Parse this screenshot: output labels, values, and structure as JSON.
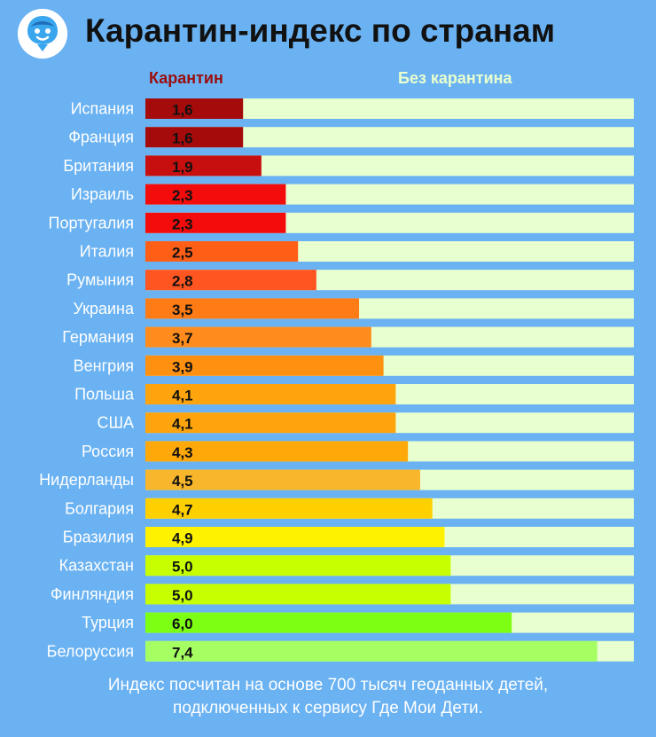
{
  "header": {
    "title": "Карантин-индекс по странам",
    "logo_icon": "child-face-pin-icon"
  },
  "legend": {
    "quarantine_label": "Карантин",
    "no_quarantine_label": "Без карантина"
  },
  "footnote": {
    "line1": "Индекс посчитан на основе 700 тысяч геоданных детей,",
    "line2": "подключенных к сервису Где Мои Дети."
  },
  "chart_data": {
    "type": "bar",
    "orientation": "horizontal",
    "stacked": true,
    "xlim": [
      0,
      8
    ],
    "grid": false,
    "categories": [
      "Испания",
      "Франция",
      "Британия",
      "Израиль",
      "Португалия",
      "Италия",
      "Румыния",
      "Украина",
      "Германия",
      "Венгрия",
      "Польша",
      "США",
      "Россия",
      "Нидерланды",
      "Болгария",
      "Бразилия",
      "Казахстан",
      "Финляндия",
      "Турция",
      "Белоруссия"
    ],
    "values": [
      1.6,
      1.6,
      1.9,
      2.3,
      2.3,
      2.5,
      2.8,
      3.5,
      3.7,
      3.9,
      4.1,
      4.1,
      4.3,
      4.5,
      4.7,
      4.9,
      5.0,
      5.0,
      6.0,
      7.4
    ],
    "value_labels": [
      "1,6",
      "1,6",
      "1,9",
      "2,3",
      "2,3",
      "2,5",
      "2,8",
      "3,5",
      "3,7",
      "3,9",
      "4,1",
      "4,1",
      "4,3",
      "4,5",
      "4,7",
      "4,9",
      "5,0",
      "5,0",
      "6,0",
      "7,4"
    ],
    "bar_colors": [
      "#a50b0b",
      "#a50b0b",
      "#c80f0f",
      "#f40b0b",
      "#f40b0b",
      "#ff5e16",
      "#ff5520",
      "#ff7b16",
      "#ff8c1c",
      "#ff9010",
      "#ffa40c",
      "#ffa40c",
      "#ffa80a",
      "#f7b62b",
      "#ffd000",
      "#fff200",
      "#c8ff00",
      "#c8ff00",
      "#7dff14",
      "#a6ff62"
    ],
    "remainder_color": "#e8ffcf"
  }
}
